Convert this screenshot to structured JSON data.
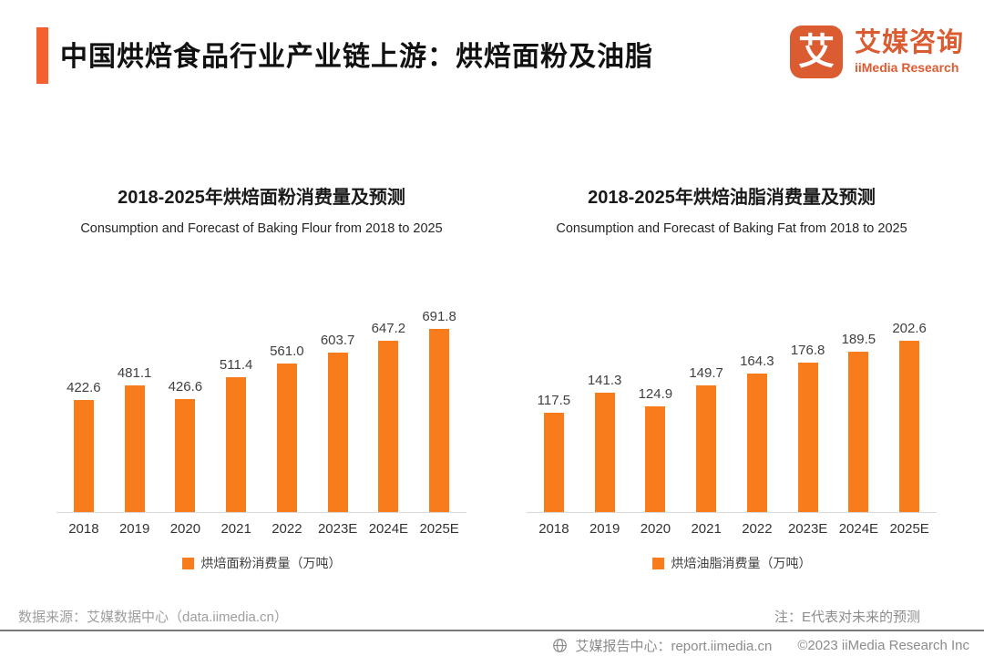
{
  "header": {
    "title": "中国烘焙食品行业产业链上游：烘焙面粉及油脂",
    "logo": {
      "glyph": "艾",
      "name_zh": "艾媒咨询",
      "name_en": "iiMedia Research"
    }
  },
  "colors": {
    "accent": "#F4612E",
    "bar": "#F87C1B",
    "logo": "#DB5C31"
  },
  "chart_data": [
    {
      "type": "bar",
      "title": "2018-2025年烘焙面粉消费量及预测",
      "subtitle": "Consumption and Forecast of Baking Flour from 2018 to 2025",
      "categories": [
        "2018",
        "2019",
        "2020",
        "2021",
        "2022",
        "2023E",
        "2024E",
        "2025E"
      ],
      "values": [
        422.6,
        481.1,
        426.6,
        511.4,
        561.0,
        603.7,
        647.2,
        691.8
      ],
      "value_decimals": 1,
      "legend": "烘焙面粉消费量（万吨）",
      "xlabel": "",
      "ylabel": "",
      "ylim": [
        0,
        800
      ],
      "grid": false,
      "legend_position": "bottom",
      "bar_color": "#F87C1B"
    },
    {
      "type": "bar",
      "title": "2018-2025年烘焙油脂消费量及预测",
      "subtitle": "Consumption and Forecast of Baking Fat from 2018 to 2025",
      "categories": [
        "2018",
        "2019",
        "2020",
        "2021",
        "2022",
        "2023E",
        "2024E",
        "2025E"
      ],
      "values": [
        117.5,
        141.3,
        124.9,
        149.7,
        164.3,
        176.8,
        189.5,
        202.6
      ],
      "value_decimals": 1,
      "legend": "烘焙油脂消费量（万吨）",
      "xlabel": "",
      "ylabel": "",
      "ylim": [
        0,
        250
      ],
      "grid": false,
      "legend_position": "bottom",
      "bar_color": "#F87C1B"
    }
  ],
  "footer": {
    "source": "数据来源：艾媒数据中心（data.iimedia.cn）",
    "note": "注：E代表对未来的预测",
    "report_center": "艾媒报告中心：report.iimedia.cn",
    "copyright": "©2023 iiMedia Research  Inc"
  }
}
